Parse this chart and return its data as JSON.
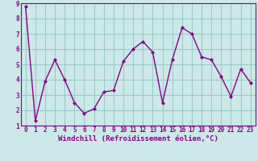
{
  "x": [
    0,
    1,
    2,
    3,
    4,
    5,
    6,
    7,
    8,
    9,
    10,
    11,
    12,
    13,
    14,
    15,
    16,
    17,
    18,
    19,
    20,
    21,
    22,
    23
  ],
  "y": [
    8.8,
    1.3,
    3.9,
    5.3,
    4.0,
    2.5,
    1.8,
    2.1,
    3.2,
    3.3,
    5.2,
    6.0,
    6.5,
    5.8,
    2.5,
    5.3,
    7.4,
    7.0,
    5.5,
    5.3,
    4.2,
    2.9,
    4.7,
    3.8
  ],
  "line_color": "#880088",
  "marker": "D",
  "marker_size": 2,
  "bg_color": "#cce8e8",
  "grid_color": "#99cccc",
  "xlabel": "Windchill (Refroidissement éolien,°C)",
  "xlim": [
    -0.5,
    23.5
  ],
  "ylim": [
    1,
    9
  ],
  "yticks": [
    1,
    2,
    3,
    4,
    5,
    6,
    7,
    8,
    9
  ],
  "xticks": [
    0,
    1,
    2,
    3,
    4,
    5,
    6,
    7,
    8,
    9,
    10,
    11,
    12,
    13,
    14,
    15,
    16,
    17,
    18,
    19,
    20,
    21,
    22,
    23
  ],
  "tick_fontsize": 5.5,
  "xlabel_fontsize": 6.5,
  "label_color": "#880088",
  "linewidth": 1.0
}
